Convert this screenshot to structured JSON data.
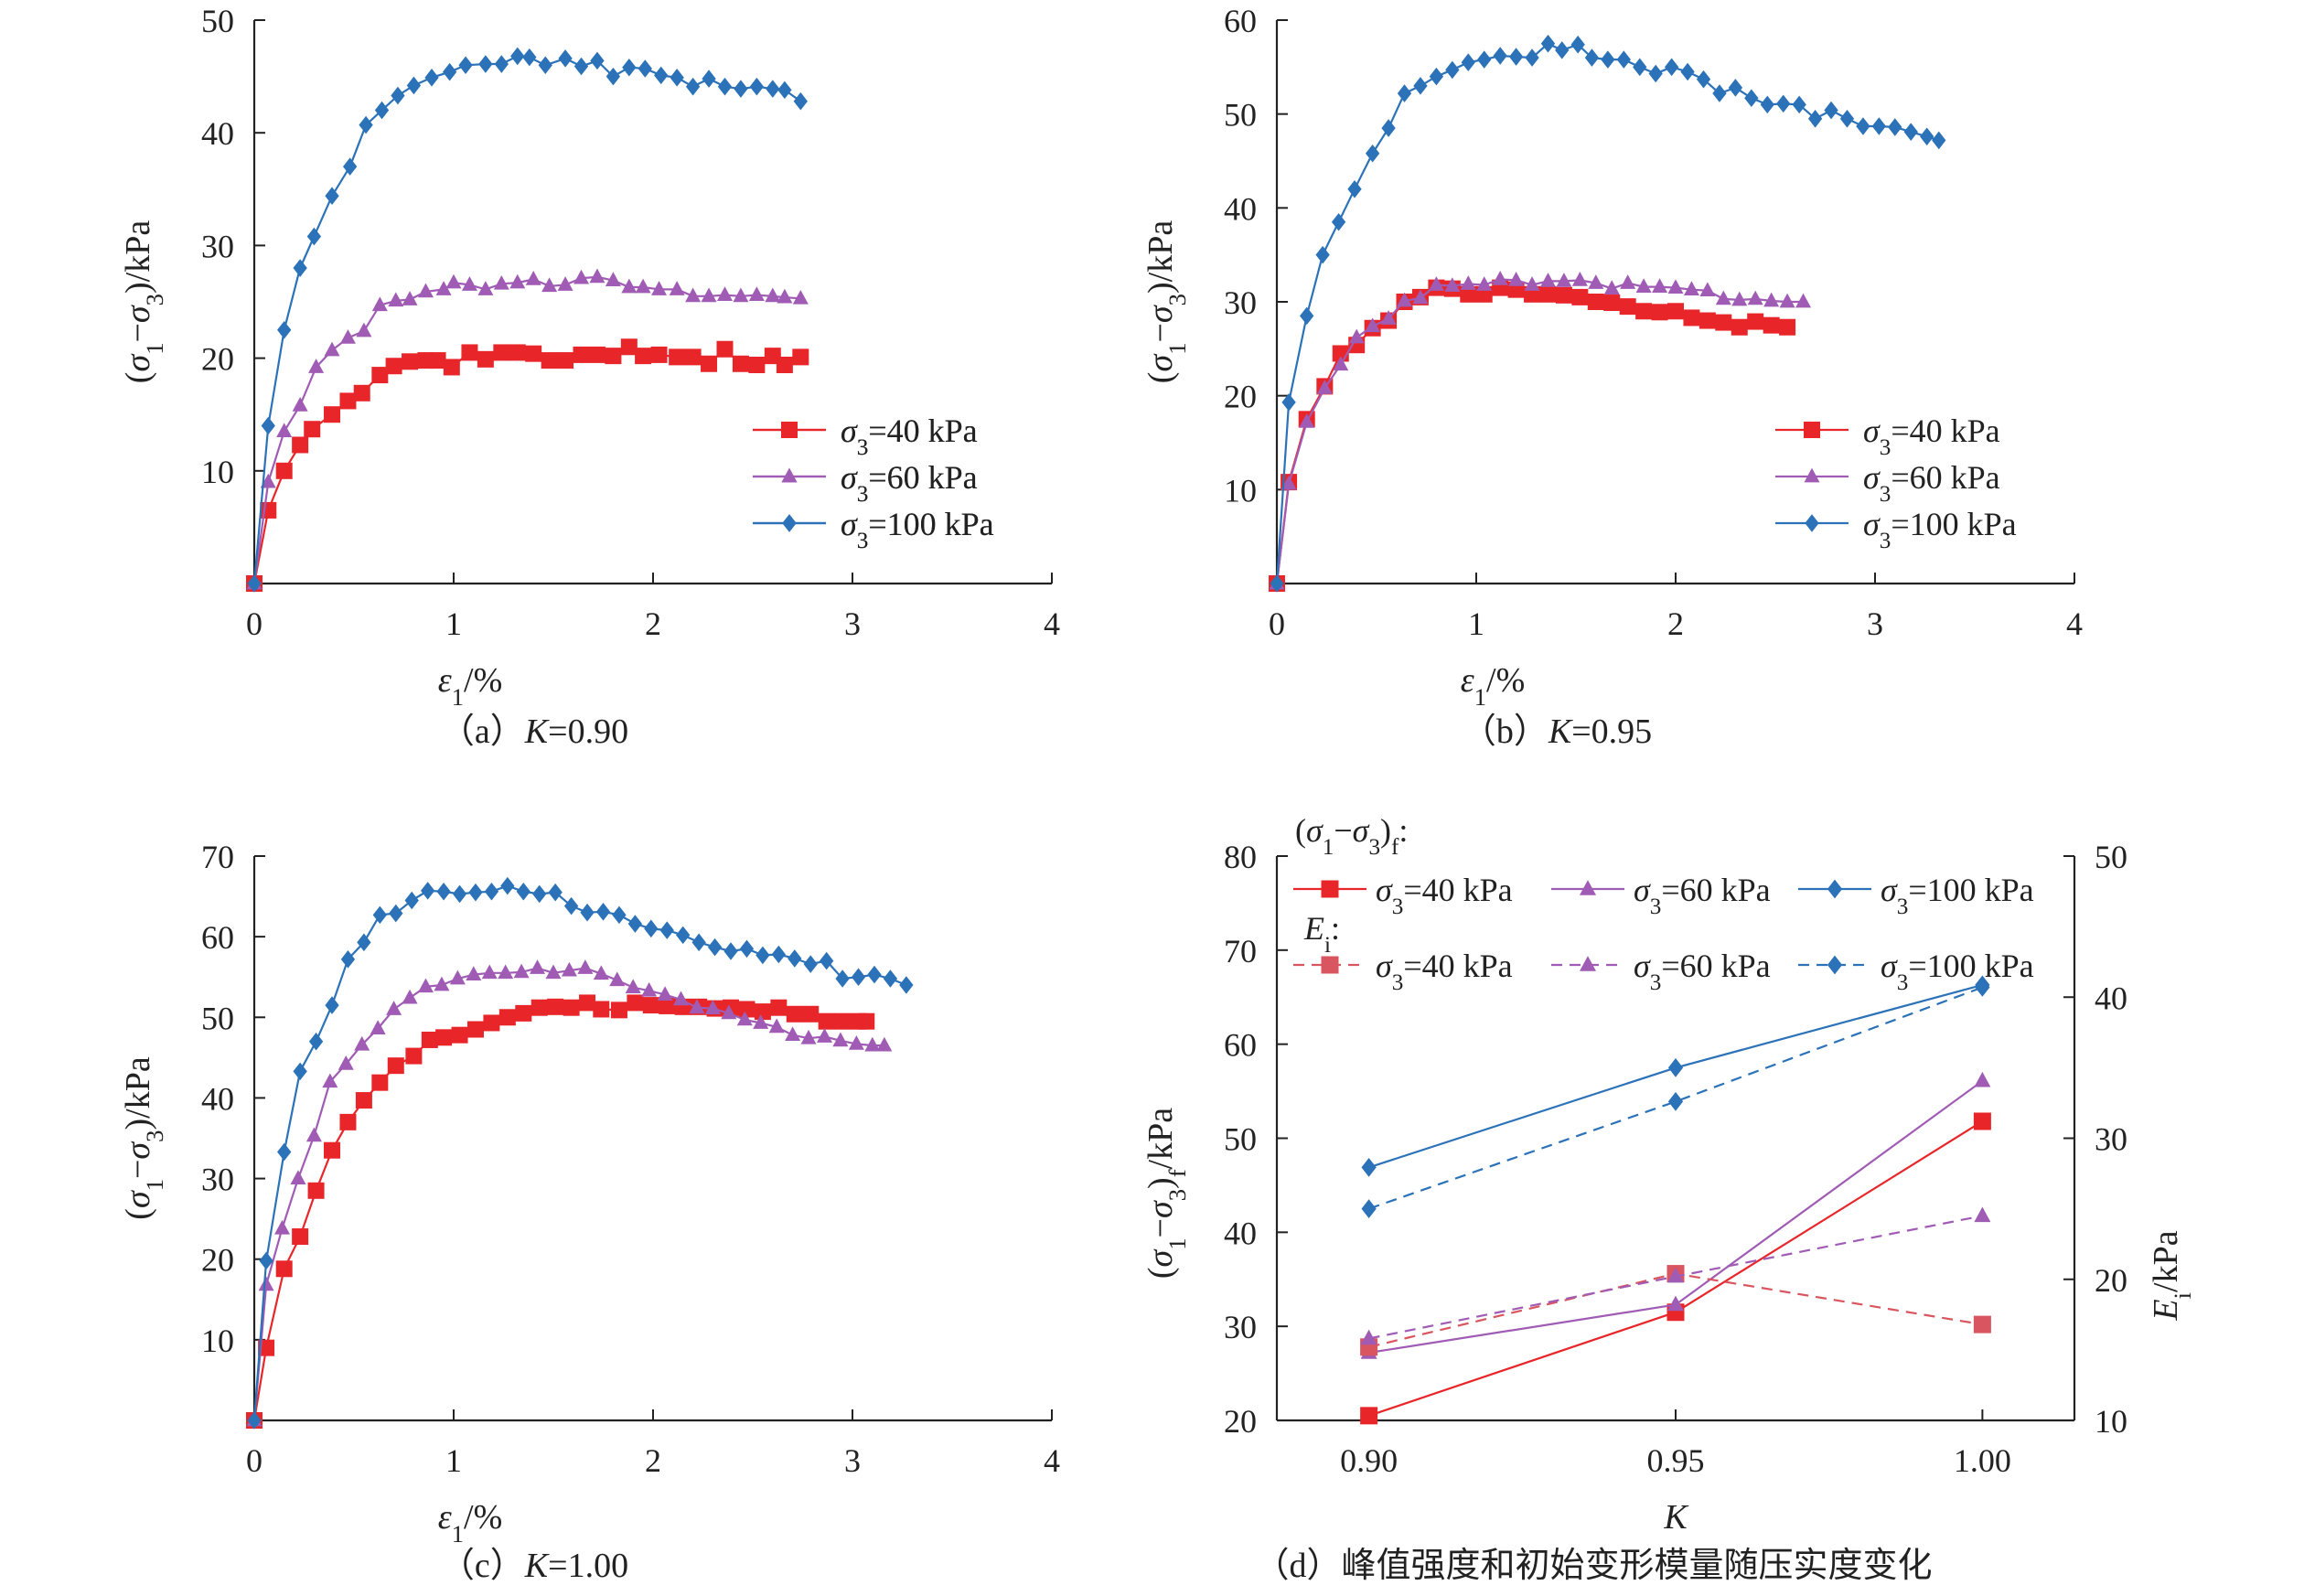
{
  "colors": {
    "s40": "#e8262a",
    "s60": "#a05cb4",
    "s100": "#2b72b8",
    "s40_ei": "#d9555f"
  },
  "legend": {
    "s40": "σ3=40 kPa",
    "s60": "σ3=60 kPa",
    "s100": "σ3=100 kPa"
  },
  "chart_data": [
    {
      "id": "a",
      "type": "line",
      "caption": "（a）K=0.90",
      "xlabel": "ε1/%",
      "ylabel": "(σ1−σ3)/kPa",
      "xlim": [
        0,
        4
      ],
      "ylim": [
        0,
        50
      ],
      "xticks": [
        0,
        1,
        2,
        3,
        4
      ],
      "yticks": [
        10,
        20,
        30,
        40,
        50
      ],
      "legend_position": "lower-right",
      "series": [
        {
          "name": "σ3=40 kPa",
          "color": "#e8262a",
          "marker": "square",
          "x": [
            0,
            0.07,
            0.15,
            0.23,
            0.29,
            0.39,
            0.47,
            0.54,
            0.63,
            0.7,
            0.78,
            0.86,
            0.92,
            0.99,
            1.08,
            1.16,
            1.24,
            1.32,
            1.4,
            1.48,
            1.56,
            1.64,
            1.72,
            1.8,
            1.88,
            1.95,
            2.03,
            2.12,
            2.2,
            2.28,
            2.36,
            2.44,
            2.52,
            2.6,
            2.66,
            2.74
          ],
          "y": [
            0,
            6.5,
            10,
            12.3,
            13.7,
            15,
            16.2,
            16.9,
            18.5,
            19.3,
            19.7,
            19.8,
            19.8,
            19.2,
            20.5,
            19.9,
            20.5,
            20.5,
            20.4,
            19.8,
            19.8,
            20.3,
            20.3,
            20.2,
            21,
            20.2,
            20.3,
            20.1,
            20.1,
            19.5,
            20.8,
            19.5,
            19.4,
            20.2,
            19.4,
            20.1
          ]
        },
        {
          "name": "σ3=60 kPa",
          "color": "#a05cb4",
          "marker": "triangle",
          "x": [
            0,
            0.07,
            0.15,
            0.23,
            0.31,
            0.39,
            0.47,
            0.55,
            0.63,
            0.71,
            0.78,
            0.86,
            0.95,
            1.0,
            1.08,
            1.16,
            1.24,
            1.32,
            1.4,
            1.48,
            1.56,
            1.64,
            1.72,
            1.8,
            1.88,
            1.95,
            2.03,
            2.12,
            2.2,
            2.28,
            2.36,
            2.44,
            2.52,
            2.6,
            2.66,
            2.74
          ],
          "y": [
            0,
            9,
            13.5,
            15.8,
            19.2,
            20.7,
            21.8,
            22.4,
            24.7,
            25.1,
            25.2,
            25.9,
            26.1,
            26.7,
            26.5,
            26.1,
            26.6,
            26.7,
            27,
            26.4,
            26.5,
            27.1,
            27.2,
            26.9,
            26.3,
            26.3,
            26.1,
            26.1,
            25.5,
            25.5,
            25.6,
            25.5,
            25.6,
            25.5,
            25.4,
            25.3
          ]
        },
        {
          "name": "σ3=100 kPa",
          "color": "#2b72b8",
          "marker": "diamond",
          "x": [
            0,
            0.07,
            0.15,
            0.23,
            0.3,
            0.39,
            0.48,
            0.56,
            0.64,
            0.72,
            0.8,
            0.89,
            0.98,
            1.06,
            1.16,
            1.24,
            1.32,
            1.38,
            1.46,
            1.56,
            1.64,
            1.72,
            1.8,
            1.88,
            1.96,
            2.04,
            2.12,
            2.2,
            2.28,
            2.36,
            2.44,
            2.52,
            2.6,
            2.66,
            2.74
          ],
          "y": [
            0,
            14,
            22.5,
            28,
            30.8,
            34.4,
            37,
            40.7,
            42,
            43.3,
            44.2,
            44.9,
            45.4,
            46,
            46.1,
            46.1,
            46.8,
            46.7,
            46,
            46.6,
            45.9,
            46.4,
            45,
            45.8,
            45.7,
            45.1,
            44.9,
            44.1,
            44.8,
            44.1,
            43.9,
            44.1,
            43.9,
            43.8,
            42.8
          ]
        }
      ]
    },
    {
      "id": "b",
      "type": "line",
      "caption": "（b）K=0.95",
      "xlabel": "ε1/%",
      "ylabel": "(σ1−σ3)/kPa",
      "xlim": [
        0,
        4
      ],
      "ylim": [
        0,
        60
      ],
      "xticks": [
        0,
        1,
        2,
        3,
        4
      ],
      "yticks": [
        10,
        20,
        30,
        40,
        50,
        60
      ],
      "legend_position": "lower-right",
      "series": [
        {
          "name": "σ3=40 kPa",
          "color": "#e8262a",
          "marker": "square",
          "x": [
            0,
            0.06,
            0.15,
            0.24,
            0.32,
            0.4,
            0.48,
            0.56,
            0.64,
            0.72,
            0.8,
            0.88,
            0.96,
            1.04,
            1.12,
            1.2,
            1.28,
            1.36,
            1.44,
            1.52,
            1.6,
            1.68,
            1.76,
            1.84,
            1.92,
            2.0,
            2.08,
            2.16,
            2.24,
            2.32,
            2.4,
            2.48,
            2.56
          ],
          "y": [
            0,
            10.8,
            17.5,
            21,
            24.5,
            25.4,
            27.2,
            28,
            30,
            30.5,
            31.5,
            31.4,
            30.8,
            30.8,
            31.5,
            31.3,
            30.8,
            30.8,
            30.7,
            30.5,
            30,
            29.9,
            29.5,
            29,
            28.9,
            29,
            28.3,
            28,
            27.8,
            27.3,
            27.9,
            27.5,
            27.3
          ]
        },
        {
          "name": "σ3=60 kPa",
          "color": "#a05cb4",
          "marker": "triangle",
          "x": [
            0,
            0.06,
            0.15,
            0.24,
            0.32,
            0.4,
            0.48,
            0.56,
            0.64,
            0.72,
            0.8,
            0.88,
            0.96,
            1.04,
            1.12,
            1.2,
            1.28,
            1.36,
            1.44,
            1.52,
            1.6,
            1.68,
            1.76,
            1.84,
            1.92,
            2.0,
            2.08,
            2.16,
            2.24,
            2.32,
            2.4,
            2.48,
            2.56,
            2.64
          ],
          "y": [
            0,
            10.6,
            17.2,
            20.8,
            23.3,
            26.2,
            27.4,
            28.2,
            30.1,
            30.4,
            31.8,
            31.7,
            31.9,
            31.8,
            32.4,
            32.3,
            31.8,
            32.2,
            32.2,
            32.3,
            32,
            31.4,
            32,
            31.6,
            31.6,
            31.5,
            31.3,
            31.2,
            30.3,
            30.2,
            30.3,
            30.1,
            30,
            30
          ]
        },
        {
          "name": "σ3=100 kPa",
          "color": "#2b72b8",
          "marker": "diamond",
          "x": [
            0,
            0.06,
            0.15,
            0.23,
            0.31,
            0.39,
            0.48,
            0.56,
            0.64,
            0.72,
            0.8,
            0.88,
            0.96,
            1.04,
            1.12,
            1.2,
            1.28,
            1.36,
            1.43,
            1.51,
            1.58,
            1.66,
            1.74,
            1.82,
            1.9,
            1.98,
            2.06,
            2.14,
            2.22,
            2.3,
            2.38,
            2.46,
            2.54,
            2.62,
            2.7,
            2.78,
            2.86,
            2.94,
            3.02,
            3.1,
            3.18,
            3.26,
            3.32
          ],
          "y": [
            0,
            19.3,
            28.5,
            35,
            38.5,
            42,
            45.8,
            48.5,
            52.2,
            53,
            54,
            54.7,
            55.5,
            55.8,
            56.2,
            56.1,
            56,
            57.5,
            56.8,
            57.4,
            56,
            55.8,
            55.8,
            55,
            54.3,
            55,
            54.5,
            53.7,
            52.2,
            52.8,
            51.7,
            51,
            51.1,
            51,
            49.5,
            50.4,
            49.5,
            48.7,
            48.7,
            48.6,
            48.1,
            47.6,
            47.2
          ]
        }
      ]
    },
    {
      "id": "c",
      "type": "line",
      "caption": "（c）K=1.00",
      "xlabel": "ε1/%",
      "ylabel": "(σ1−σ3)/kPa",
      "xlim": [
        0,
        4
      ],
      "ylim": [
        0,
        70
      ],
      "xticks": [
        0,
        1,
        2,
        3,
        4
      ],
      "yticks": [
        10,
        20,
        30,
        40,
        50,
        60,
        70
      ],
      "legend_position": "lower-right",
      "series": [
        {
          "name": "σ3=40 kPa",
          "color": "#e8262a",
          "marker": "square",
          "x": [
            0,
            0.06,
            0.15,
            0.23,
            0.31,
            0.39,
            0.47,
            0.55,
            0.63,
            0.71,
            0.8,
            0.88,
            0.95,
            1.03,
            1.11,
            1.19,
            1.27,
            1.35,
            1.43,
            1.51,
            1.59,
            1.67,
            1.74,
            1.83,
            1.91,
            1.99,
            2.07,
            2.15,
            2.23,
            2.31,
            2.39,
            2.47,
            2.55,
            2.63,
            2.71,
            2.79,
            2.87,
            2.95,
            3.03,
            3.07
          ],
          "y": [
            0,
            9,
            18.8,
            22.8,
            28.5,
            33.5,
            37,
            39.7,
            41.9,
            44,
            45.2,
            47.2,
            47.5,
            47.8,
            48.5,
            49.3,
            50,
            50.5,
            51.2,
            51.3,
            51.2,
            51.8,
            51,
            50.9,
            51.8,
            51.5,
            51.4,
            51.3,
            51.3,
            51.1,
            51.2,
            51,
            50.7,
            51.2,
            50.4,
            50.4,
            49.5,
            49.5,
            49.5,
            49.5
          ]
        },
        {
          "name": "σ3=60 kPa",
          "color": "#a05cb4",
          "marker": "triangle",
          "x": [
            0,
            0.06,
            0.14,
            0.22,
            0.3,
            0.38,
            0.46,
            0.54,
            0.62,
            0.7,
            0.78,
            0.86,
            0.94,
            1.02,
            1.1,
            1.18,
            1.26,
            1.34,
            1.42,
            1.5,
            1.58,
            1.66,
            1.74,
            1.82,
            1.9,
            1.98,
            2.06,
            2.14,
            2.22,
            2.3,
            2.38,
            2.46,
            2.54,
            2.62,
            2.7,
            2.78,
            2.86,
            2.94,
            3.02,
            3.1,
            3.16
          ],
          "y": [
            0,
            16.8,
            23.8,
            30,
            35.3,
            42,
            44.2,
            46.6,
            48.6,
            51,
            52.4,
            53.8,
            54,
            54.8,
            55.3,
            55.5,
            55.5,
            55.6,
            56.1,
            55.5,
            55.8,
            56.1,
            55.4,
            54.6,
            53.7,
            53.3,
            52.8,
            52.2,
            51.2,
            51.1,
            50.5,
            49.7,
            49.3,
            48.8,
            47.8,
            47.4,
            47.6,
            47.1,
            46.7,
            46.5,
            46.5
          ]
        },
        {
          "name": "σ3=100 kPa",
          "color": "#2b72b8",
          "marker": "diamond",
          "x": [
            0,
            0.06,
            0.15,
            0.23,
            0.31,
            0.39,
            0.47,
            0.55,
            0.63,
            0.71,
            0.79,
            0.87,
            0.95,
            1.03,
            1.11,
            1.19,
            1.27,
            1.35,
            1.43,
            1.51,
            1.59,
            1.67,
            1.75,
            1.83,
            1.91,
            1.99,
            2.07,
            2.15,
            2.23,
            2.31,
            2.39,
            2.47,
            2.55,
            2.63,
            2.71,
            2.79,
            2.87,
            2.95,
            3.03,
            3.11,
            3.19,
            3.27
          ],
          "y": [
            0,
            19.8,
            33.3,
            43.3,
            47,
            51.5,
            57.2,
            59.3,
            62.7,
            62.9,
            64.5,
            65.7,
            65.6,
            65.3,
            65.5,
            65.6,
            66.3,
            65.6,
            65.3,
            65.5,
            63.8,
            63,
            63.1,
            62.7,
            61.6,
            61,
            60.8,
            60.2,
            59.3,
            58.7,
            58.2,
            58.5,
            57.7,
            57.8,
            57.3,
            56.6,
            57,
            54.8,
            55,
            55.3,
            54.8,
            54
          ]
        }
      ]
    },
    {
      "id": "d",
      "type": "line",
      "caption": "（d）峰值强度和初始变形模量随压实度变化",
      "xlabel": "K",
      "ylabel": "(σ1−σ3)f/kPa",
      "y2label": "Ei/kPa",
      "xlim": [
        0.885,
        1.015
      ],
      "ylim": [
        20,
        80
      ],
      "y2lim": [
        10,
        50
      ],
      "xticks": [
        0.9,
        0.95,
        1.0
      ],
      "xtick_labels": [
        "0.90",
        "0.95",
        "1.00"
      ],
      "yticks": [
        20,
        30,
        40,
        50,
        60,
        70,
        80
      ],
      "y2ticks": [
        10,
        20,
        30,
        40,
        50
      ],
      "legend_position": "top",
      "legend_group1": "(σ1−σ3)f:",
      "legend_group2": "Ei:",
      "series": [
        {
          "group": "peak",
          "axis": "left",
          "name": "σ3=40 kPa",
          "color": "#e8262a",
          "marker": "square",
          "dash": false,
          "x": [
            0.9,
            0.95,
            1.0
          ],
          "y": [
            20.5,
            31.5,
            51.8
          ]
        },
        {
          "group": "peak",
          "axis": "left",
          "name": "σ3=60 kPa",
          "color": "#a05cb4",
          "marker": "triangle",
          "dash": false,
          "x": [
            0.9,
            0.95,
            1.0
          ],
          "y": [
            27.2,
            32.3,
            56.1
          ]
        },
        {
          "group": "peak",
          "axis": "left",
          "name": "σ3=100 kPa",
          "color": "#2b72b8",
          "marker": "diamond",
          "dash": false,
          "x": [
            0.9,
            0.95,
            1.0
          ],
          "y": [
            46.9,
            57.5,
            66.3
          ]
        },
        {
          "group": "ei",
          "axis": "right",
          "name": "σ3=40 kPa",
          "color": "#d9555f",
          "marker": "square",
          "dash": true,
          "x": [
            0.9,
            0.95,
            1.0
          ],
          "y": [
            15.2,
            20.4,
            16.8
          ]
        },
        {
          "group": "ei",
          "axis": "right",
          "name": "σ3=60 kPa",
          "color": "#a05cb4",
          "marker": "triangle",
          "dash": true,
          "x": [
            0.9,
            0.95,
            1.0
          ],
          "y": [
            15.8,
            20.2,
            24.5
          ]
        },
        {
          "group": "ei",
          "axis": "right",
          "name": "σ3=100 kPa",
          "color": "#2b72b8",
          "marker": "diamond",
          "dash": true,
          "x": [
            0.9,
            0.95,
            1.0
          ],
          "y": [
            25,
            32.6,
            40.7
          ]
        }
      ]
    }
  ]
}
